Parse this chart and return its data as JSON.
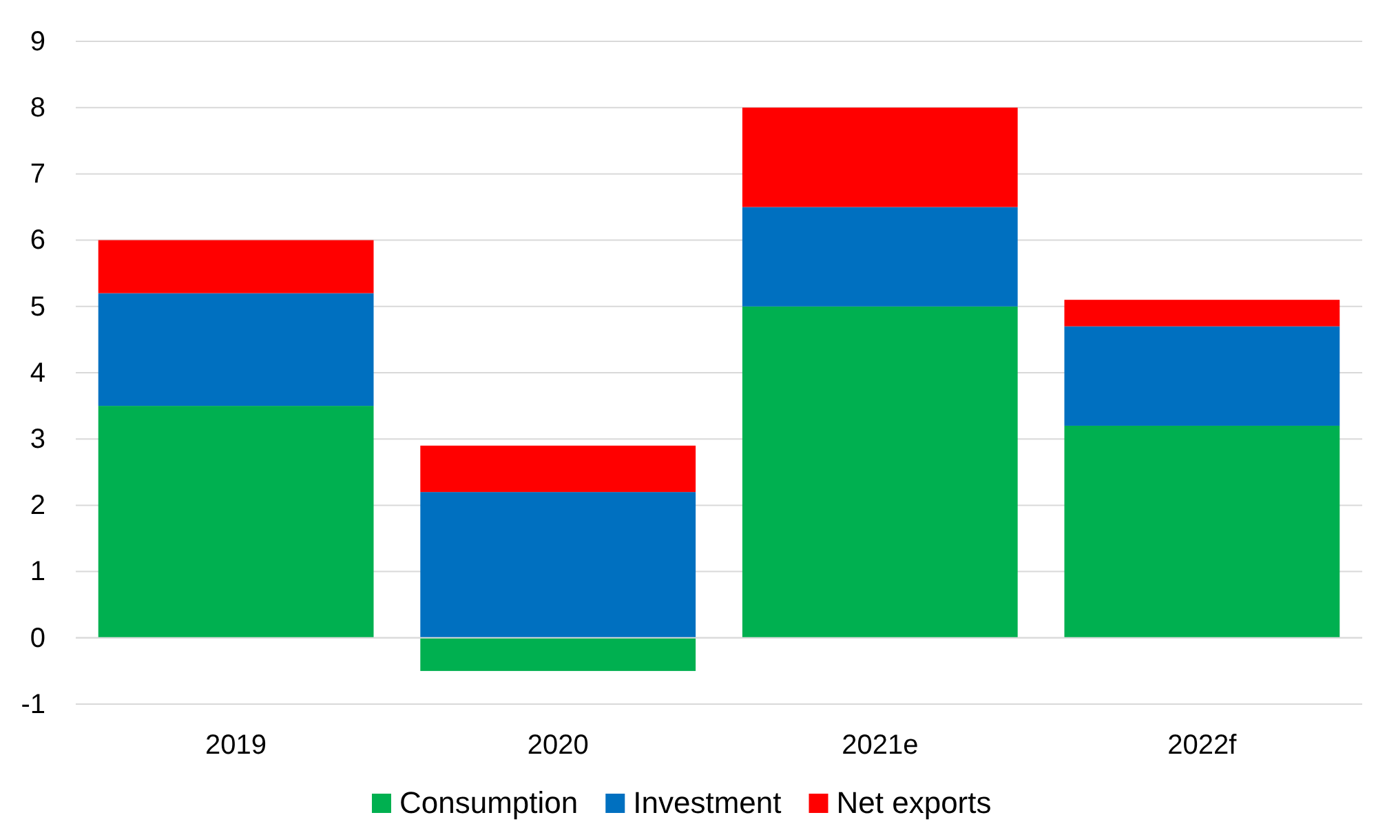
{
  "chart_data": {
    "type": "bar",
    "stacked": true,
    "categories": [
      "2019",
      "2020",
      "2021e",
      "2022f"
    ],
    "series": [
      {
        "name": "Consumption",
        "color": "#00b050",
        "values": [
          3.5,
          -0.5,
          5.0,
          3.2
        ]
      },
      {
        "name": "Investment",
        "color": "#0070c0",
        "values": [
          1.7,
          2.2,
          1.5,
          1.5
        ]
      },
      {
        "name": "Net exports",
        "color": "#ff0000",
        "values": [
          0.8,
          0.7,
          1.5,
          0.4
        ]
      }
    ],
    "ylim": [
      -1,
      9
    ],
    "yticks": [
      -1,
      0,
      1,
      2,
      3,
      4,
      5,
      6,
      7,
      8,
      9
    ],
    "grid": "y",
    "legend": "bottom"
  }
}
